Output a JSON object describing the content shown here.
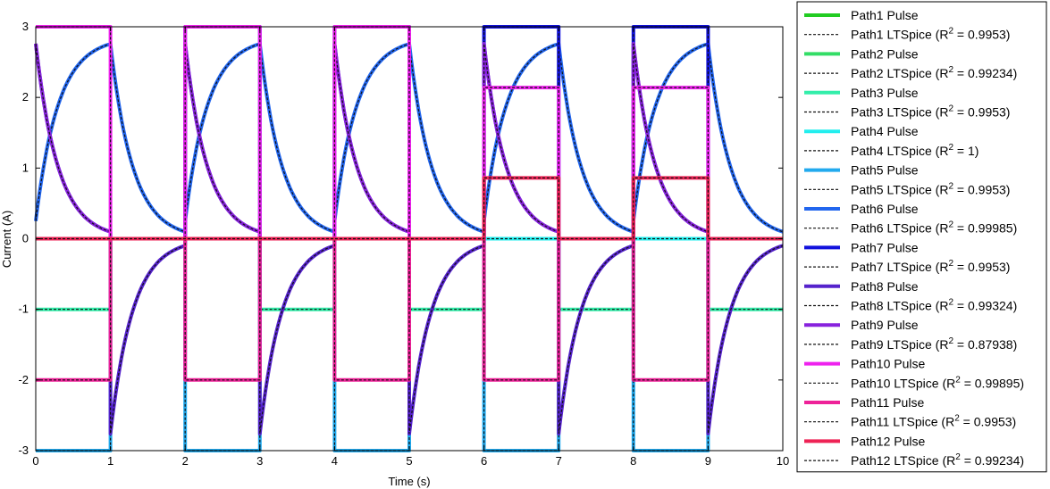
{
  "chart_data": {
    "type": "line",
    "xlabel": "Time (s)",
    "ylabel": "Current (A)",
    "xlim": [
      0,
      10
    ],
    "ylim": [
      -3,
      3
    ],
    "xticks": [
      0,
      1,
      2,
      3,
      4,
      5,
      6,
      7,
      8,
      9,
      10
    ],
    "yticks": [
      3,
      2,
      1,
      0,
      -1,
      -2,
      -3
    ],
    "grid": false,
    "legend_position": "right",
    "period": 1,
    "tau": 0.3,
    "series": [
      {
        "name": "Path1",
        "color": "#22cc22",
        "shape": "square",
        "levels": [
          0,
          0,
          0,
          0,
          0,
          0,
          0,
          0,
          0,
          0
        ]
      },
      {
        "name": "Path2",
        "color": "#33dd66",
        "shape": "square",
        "levels": [
          0,
          0,
          0,
          0,
          0,
          0,
          0,
          0,
          0,
          0
        ]
      },
      {
        "name": "Path3",
        "color": "#33eeaa",
        "shape": "square",
        "levels": [
          -1,
          0,
          0,
          -1,
          0,
          -1,
          0,
          -1,
          0,
          -1
        ]
      },
      {
        "name": "Path4",
        "color": "#22eeee",
        "shape": "square",
        "levels": [
          0,
          0,
          0,
          0,
          0,
          0,
          0,
          0,
          0,
          0
        ]
      },
      {
        "name": "Path5",
        "color": "#22aaee",
        "shape": "square",
        "levels": [
          -3,
          0,
          -3,
          0,
          -3,
          0,
          -3,
          0,
          -3,
          0
        ]
      },
      {
        "name": "Path6",
        "color": "#2266ee",
        "shape": "rise",
        "amp": 3
      },
      {
        "name": "Path7",
        "color": "#1111dd",
        "shape": "square",
        "levels": [
          0,
          0,
          3,
          0,
          3,
          0,
          3,
          0,
          3,
          0
        ]
      },
      {
        "name": "Path8",
        "color": "#5522cc",
        "shape": "decay_signed",
        "amp": 3
      },
      {
        "name": "Path9",
        "color": "#8822dd",
        "shape": "decay_pos",
        "amp": 3
      },
      {
        "name": "Path10",
        "color": "#ee22ee",
        "shape": "square",
        "levels": [
          3,
          0,
          3,
          0,
          3,
          0,
          2.14,
          0,
          2.14,
          0
        ]
      },
      {
        "name": "Path11",
        "color": "#ee2299",
        "shape": "square",
        "levels": [
          -2,
          0,
          -2,
          0,
          -2,
          0,
          -2,
          0,
          -2,
          0
        ]
      },
      {
        "name": "Path12",
        "color": "#ee2255",
        "shape": "square",
        "levels": [
          0,
          0,
          0,
          0,
          0,
          0,
          0.86,
          0,
          0.86,
          0
        ]
      }
    ],
    "legend": [
      {
        "label": "Path1 Pulse",
        "style": "solid",
        "color": "#22cc22"
      },
      {
        "label": "Path1 LTSpice (R",
        "sup": "2",
        "tail": " = 0.9953)",
        "style": "dashed"
      },
      {
        "label": "Path2 Pulse",
        "style": "solid",
        "color": "#33dd66"
      },
      {
        "label": "Path2 LTSpice (R",
        "sup": "2",
        "tail": " = 0.99234)",
        "style": "dashed"
      },
      {
        "label": "Path3 Pulse",
        "style": "solid",
        "color": "#33eeaa"
      },
      {
        "label": "Path3 LTSpice (R",
        "sup": "2",
        "tail": " = 0.9953)",
        "style": "dashed"
      },
      {
        "label": "Path4 Pulse",
        "style": "solid",
        "color": "#22eeee"
      },
      {
        "label": "Path4 LTSpice (R",
        "sup": "2",
        "tail": " = 1)",
        "style": "dashed"
      },
      {
        "label": "Path5 Pulse",
        "style": "solid",
        "color": "#22aaee"
      },
      {
        "label": "Path5 LTSpice (R",
        "sup": "2",
        "tail": " = 0.9953)",
        "style": "dashed"
      },
      {
        "label": "Path6 Pulse",
        "style": "solid",
        "color": "#2266ee"
      },
      {
        "label": "Path6 LTSpice (R",
        "sup": "2",
        "tail": " = 0.99985)",
        "style": "dashed"
      },
      {
        "label": "Path7 Pulse",
        "style": "solid",
        "color": "#1111dd"
      },
      {
        "label": "Path7 LTSpice (R",
        "sup": "2",
        "tail": " = 0.9953)",
        "style": "dashed"
      },
      {
        "label": "Path8 Pulse",
        "style": "solid",
        "color": "#5522cc"
      },
      {
        "label": "Path8 LTSpice (R",
        "sup": "2",
        "tail": " = 0.99324)",
        "style": "dashed"
      },
      {
        "label": "Path9 Pulse",
        "style": "solid",
        "color": "#8822dd"
      },
      {
        "label": "Path9 LTSpice (R",
        "sup": "2",
        "tail": " = 0.87938)",
        "style": "dashed"
      },
      {
        "label": "Path10 Pulse",
        "style": "solid",
        "color": "#ee22ee"
      },
      {
        "label": "Path10 LTSpice (R",
        "sup": "2",
        "tail": " = 0.99895)",
        "style": "dashed"
      },
      {
        "label": "Path11 Pulse",
        "style": "solid",
        "color": "#ee2299"
      },
      {
        "label": "Path11 LTSpice (R",
        "sup": "2",
        "tail": " = 0.9953)",
        "style": "dashed"
      },
      {
        "label": "Path12 Pulse",
        "style": "solid",
        "color": "#ee2255"
      },
      {
        "label": "Path12 LTSpice (R",
        "sup": "2",
        "tail": " = 0.99234)",
        "style": "dashed"
      }
    ]
  }
}
